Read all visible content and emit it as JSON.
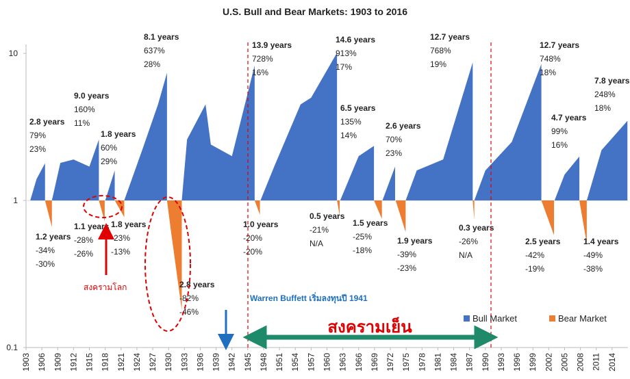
{
  "chart_data": {
    "type": "area",
    "title": "U.S.  Bull and Bear Markets: 1903 to 2016",
    "log_scale": true,
    "ylim": [
      0.1,
      11.5
    ],
    "yticks": [
      10,
      1,
      0.1
    ],
    "xlim": [
      1903,
      2017
    ],
    "xticks": [
      1903,
      1906,
      1909,
      1912,
      1915,
      1918,
      1921,
      1924,
      1927,
      1930,
      1933,
      1936,
      1939,
      1942,
      1945,
      1948,
      1951,
      1954,
      1957,
      1960,
      1963,
      1966,
      1969,
      1972,
      1975,
      1978,
      1981,
      1984,
      1987,
      1990,
      1993,
      1996,
      1999,
      2002,
      2005,
      2008,
      2011,
      2014
    ],
    "series": [
      {
        "name": "Bull Market",
        "color": "#4472c4",
        "x": [
          1903.8,
          1905,
          1906.6,
          null,
          1907.9,
          1909.5,
          1912,
          1915,
          1916.8,
          null,
          1918,
          1919.8,
          null,
          1921.6,
          1925,
          1928,
          1929.7,
          null,
          1932.5,
          1933.5,
          1937,
          1938,
          1942,
          1946.3,
          null,
          1947.4,
          1950,
          1955,
          1957,
          1961.9,
          null,
          1962.5,
          1966,
          1968.9,
          null,
          1970.5,
          1972.9,
          null,
          1974.9,
          1977,
          1982,
          1987.6,
          null,
          1987.9,
          1990,
          1995,
          2000.6,
          null,
          2003.1,
          2005,
          2007.8,
          null,
          2009.2,
          2012,
          2016.9
        ],
        "values": [
          1,
          1.4,
          1.79,
          null,
          1,
          1.8,
          1.9,
          1.7,
          2.6,
          null,
          1,
          1.6,
          null,
          1,
          2.2,
          4.5,
          7.37,
          null,
          1,
          2.6,
          4.5,
          2.4,
          2.0,
          8.28,
          null,
          1,
          1.7,
          4.5,
          5,
          10.1,
          null,
          1,
          2.0,
          2.35,
          null,
          1,
          1.7,
          null,
          1,
          1.6,
          1.9,
          8.68,
          null,
          1,
          1.6,
          2.5,
          8.48,
          null,
          1,
          1.5,
          1.99,
          null,
          1,
          2.2,
          3.48
        ]
      },
      {
        "name": "Bear Market",
        "color": "#ed7d31",
        "x": [
          1906.6,
          1907.9,
          null,
          1916.8,
          1917.9,
          null,
          1919.8,
          1921.6,
          null,
          1929.7,
          1930.5,
          1932.5,
          null,
          1946.3,
          1947.3,
          null,
          1961.9,
          1962.4,
          null,
          1968.9,
          1970.4,
          null,
          1973,
          1974.9,
          null,
          1987.6,
          1987.9,
          null,
          2000.6,
          2003,
          null,
          2007.8,
          2009.2
        ],
        "values": [
          1,
          0.66,
          null,
          1,
          0.72,
          null,
          1,
          0.77,
          null,
          1,
          0.6,
          0.18,
          null,
          1,
          0.8,
          null,
          1,
          0.79,
          null,
          1,
          0.75,
          null,
          1,
          0.61,
          null,
          1,
          0.74,
          null,
          1,
          0.58,
          null,
          1,
          0.51
        ]
      }
    ],
    "annotations": [
      [
        "2.8 years",
        "79%",
        "23%"
      ],
      [
        "9.0 years",
        "160%",
        "11%"
      ],
      [
        "1.8 years",
        "60%",
        "29%"
      ],
      [
        "8.1 years",
        "637%",
        "28%"
      ],
      [
        "13.9 years",
        "728%",
        "16%"
      ],
      [
        "14.6 years",
        "913%",
        "17%"
      ],
      [
        "6.5 years",
        "135%",
        "14%"
      ],
      [
        "2.6 years",
        "70%",
        "23%"
      ],
      [
        "12.7 years",
        "768%",
        "19%"
      ],
      [
        "12.7 years",
        "748%",
        "18%"
      ],
      [
        "4.7 years",
        "99%",
        "16%"
      ],
      [
        "7.8 years",
        "248%",
        "18%"
      ],
      [
        "1.2 years",
        "-34%",
        "-30%"
      ],
      [
        "1.1 years",
        "-28%",
        "-26%"
      ],
      [
        "1.8 years",
        "-23%",
        "-13%"
      ],
      [
        "2.8 years",
        "-82%",
        "-46%"
      ],
      [
        "1.0 years",
        "-20%",
        "-20%"
      ],
      [
        "0.5 years",
        "-21%",
        "N/A"
      ],
      [
        "1.5 years",
        "-25%",
        "-18%"
      ],
      [
        "1.9 years",
        "-39%",
        "-23%"
      ],
      [
        "0.3 years",
        "-26%",
        "N/A"
      ],
      [
        "2.5 years",
        "-42%",
        "-19%"
      ],
      [
        "1.4 years",
        "-49%",
        "-38%"
      ]
    ],
    "world_war_label": "สงครามโลก",
    "buffett_label": "Warren Buffett เริ่มลงทุนปี 1941",
    "cold_war_label": "สงครามเย็น"
  }
}
